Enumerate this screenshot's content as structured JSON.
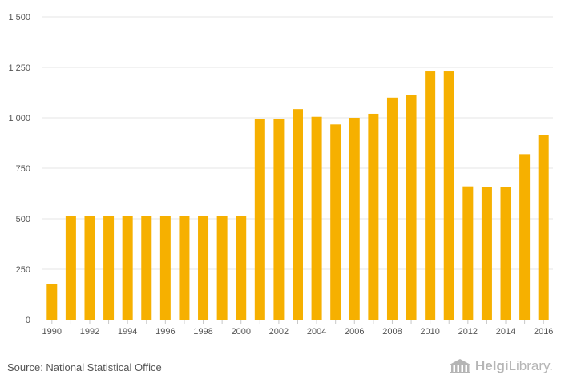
{
  "chart_data": {
    "type": "bar",
    "title": "",
    "xlabel": "",
    "ylabel": "",
    "ylim": [
      0,
      1500
    ],
    "yticks": [
      0,
      250,
      500,
      750,
      1000,
      1250,
      1500
    ],
    "ytick_labels": [
      "0",
      "250",
      "500",
      "750",
      "1 000",
      "1 250",
      "1 500"
    ],
    "categories": [
      "1990",
      "1991",
      "1992",
      "1993",
      "1994",
      "1995",
      "1996",
      "1997",
      "1998",
      "1999",
      "2000",
      "2001",
      "2002",
      "2003",
      "2004",
      "2005",
      "2006",
      "2007",
      "2008",
      "2009",
      "2010",
      "2011",
      "2012",
      "2013",
      "2014",
      "2015",
      "2016"
    ],
    "xtick_labels": [
      "1990",
      "",
      "1992",
      "",
      "1994",
      "",
      "1996",
      "",
      "1998",
      "",
      "2000",
      "",
      "2002",
      "",
      "2004",
      "",
      "2006",
      "",
      "2008",
      "",
      "2010",
      "",
      "2012",
      "",
      "2014",
      "",
      "2016"
    ],
    "values": [
      178,
      515,
      515,
      515,
      515,
      515,
      515,
      515,
      515,
      515,
      515,
      995,
      995,
      1043,
      1005,
      967,
      1000,
      1020,
      1100,
      1115,
      1230,
      1230,
      660,
      655,
      655,
      820,
      915
    ],
    "bar_color": "#f6b000",
    "grid": true
  },
  "footer": {
    "source": "Source: National Statistical Office",
    "logo_text_1": "Helgi",
    "logo_text_2": "Library."
  }
}
